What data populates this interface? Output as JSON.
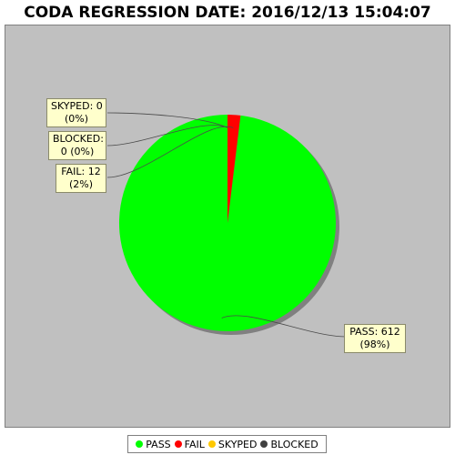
{
  "chart_data": {
    "type": "pie",
    "title": "CODA REGRESSION DATE: 2016/12/13 15:04:07",
    "slices": [
      {
        "name": "PASS",
        "value": 612,
        "label_count": "PASS: 612",
        "label_pct": "(98%)",
        "color": "#00ff00"
      },
      {
        "name": "FAIL",
        "value": 12,
        "label_count": "FAIL: 12",
        "label_pct": "(2%)",
        "color": "#ff0000"
      },
      {
        "name": "SKYPED",
        "value": 0,
        "label_count": "SKYPED: 0",
        "label_pct": "(0%)",
        "color": "#ffc800"
      },
      {
        "name": "BLOCKED",
        "value": 0,
        "label_count": "BLOCKED:",
        "label_pct": "0 (0%)",
        "color": "#404040"
      }
    ],
    "legend_position": "bottom",
    "plot_background": "#c0c0c0"
  }
}
